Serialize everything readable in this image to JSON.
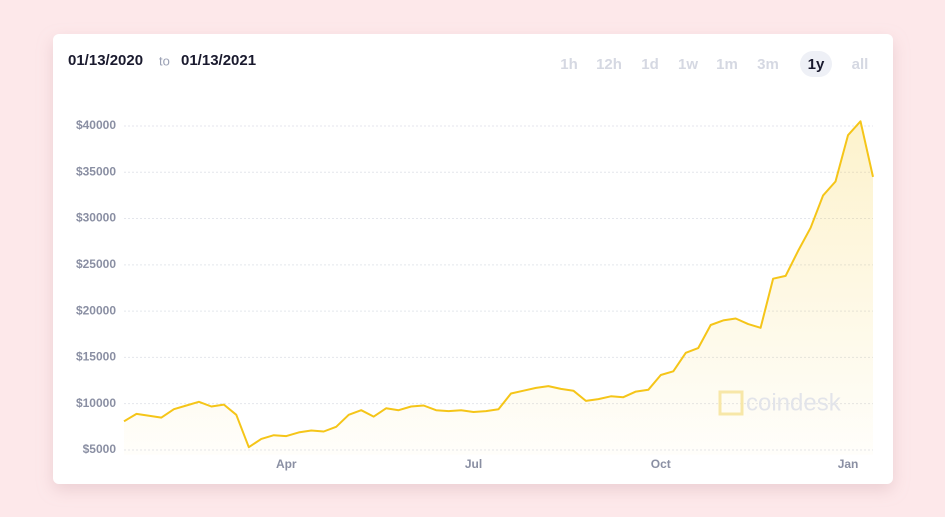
{
  "header": {
    "from": "01/13/2020",
    "joiner": "to",
    "to": "01/13/2021"
  },
  "range_buttons": [
    "1h",
    "12h",
    "1d",
    "1w",
    "1m",
    "3m",
    "1y",
    "all"
  ],
  "active_range": "1y",
  "watermark": "coindesk",
  "chart_data": {
    "type": "line",
    "categories": [
      null,
      null,
      null,
      null,
      null,
      null,
      null,
      null,
      null,
      null,
      null,
      null,
      null,
      "Apr",
      null,
      null,
      null,
      null,
      null,
      null,
      null,
      null,
      null,
      null,
      null,
      null,
      null,
      null,
      "Jul",
      null,
      null,
      null,
      null,
      null,
      null,
      null,
      null,
      null,
      null,
      null,
      null,
      null,
      null,
      "Oct",
      null,
      null,
      null,
      null,
      null,
      null,
      null,
      null,
      null,
      null,
      null,
      null,
      null,
      null,
      "Jan",
      null,
      null
    ],
    "values": [
      8100,
      8900,
      8700,
      8500,
      9400,
      9800,
      10200,
      9700,
      9900,
      8800,
      5300,
      6200,
      6600,
      6500,
      6900,
      7100,
      7000,
      7500,
      8800,
      9300,
      8600,
      9500,
      9300,
      9700,
      9800,
      9300,
      9200,
      9300,
      9100,
      9200,
      9400,
      11100,
      11400,
      11700,
      11900,
      11600,
      11400,
      10300,
      10500,
      10800,
      10700,
      11300,
      11500,
      13100,
      13500,
      15500,
      16000,
      18500,
      19000,
      19200,
      18600,
      18200,
      23500,
      23800,
      26500,
      29000,
      32500,
      34000,
      39000,
      40500,
      34500
    ],
    "color": "#f5c518",
    "ylim": [
      4500,
      41000
    ],
    "yticks": [
      {
        "value": 5000,
        "label": "$5000"
      },
      {
        "value": 10000,
        "label": "$10000"
      },
      {
        "value": 15000,
        "label": "$15000"
      },
      {
        "value": 20000,
        "label": "$20000"
      },
      {
        "value": 25000,
        "label": "$25000"
      },
      {
        "value": 30000,
        "label": "$30000"
      },
      {
        "value": 35000,
        "label": "$35000"
      },
      {
        "value": 40000,
        "label": "$40000"
      }
    ],
    "grid": true
  }
}
